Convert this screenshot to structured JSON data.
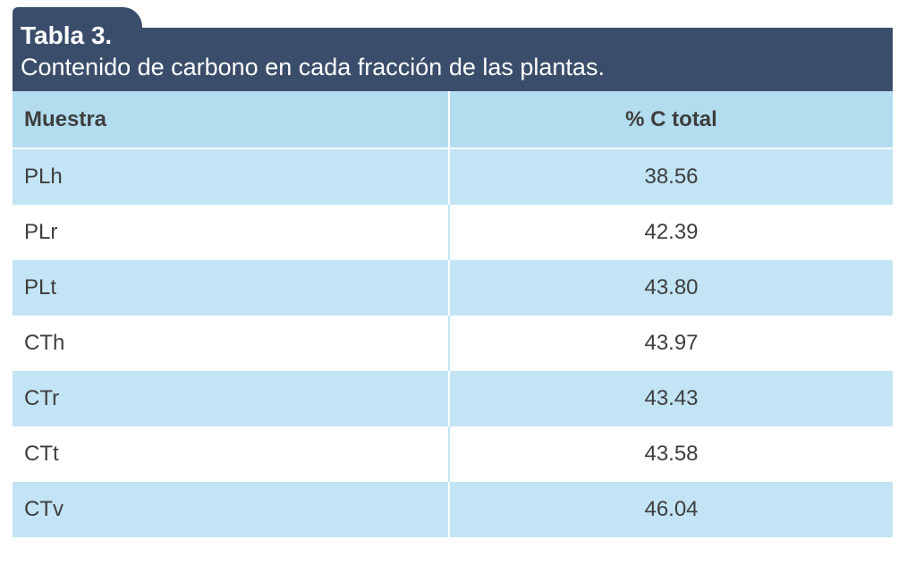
{
  "caption": {
    "title": "Tabla 3.",
    "subtitle": "Contenido de carbono en cada fracción de las plantas."
  },
  "table": {
    "headers": [
      "Muestra",
      "% C total"
    ],
    "rows": [
      {
        "sample": "PLh",
        "carbon": "38.56"
      },
      {
        "sample": "PLr",
        "carbon": "42.39"
      },
      {
        "sample": "PLt",
        "carbon": "43.80"
      },
      {
        "sample": "CTh",
        "carbon": "43.97"
      },
      {
        "sample": "CTr",
        "carbon": "43.43"
      },
      {
        "sample": "CTt",
        "carbon": "43.58"
      },
      {
        "sample": "CTv",
        "carbon": "46.04"
      }
    ]
  },
  "colors": {
    "header_band": "#3a4e6b",
    "column_header": "#b3dcef",
    "shaded_row": "#c2e4f5",
    "text": "#3e3e3e"
  }
}
